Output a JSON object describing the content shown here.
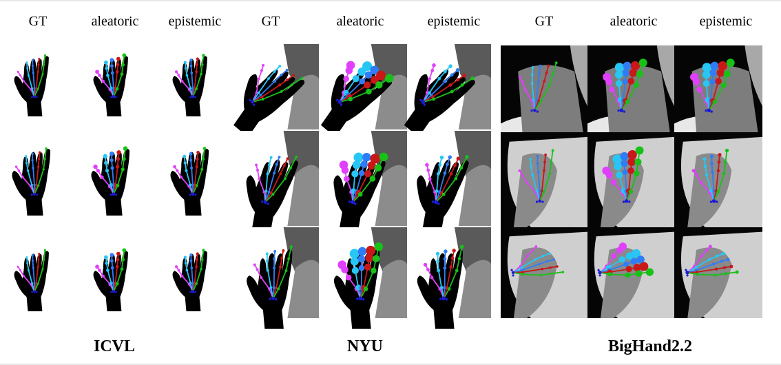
{
  "figure": {
    "columns": {
      "icvl": [
        "GT",
        "aleatoric",
        "epistemic"
      ],
      "nyu": [
        "GT",
        "aleatoric",
        "epistemic"
      ],
      "bighand": [
        "GT",
        "aleatoric",
        "epistemic"
      ]
    },
    "datasets": [
      "ICVL",
      "NYU",
      "BigHand2.2"
    ],
    "colors": {
      "thumb": "#e040fb",
      "index": "#27c6f5",
      "middle": "#2f7df6",
      "ring": "#c81818",
      "pinky": "#17c117",
      "wrist": "#1b1bd6",
      "hand": "#000000",
      "bg_dark": "#777777",
      "bg_light": "#d9d9d9"
    }
  }
}
